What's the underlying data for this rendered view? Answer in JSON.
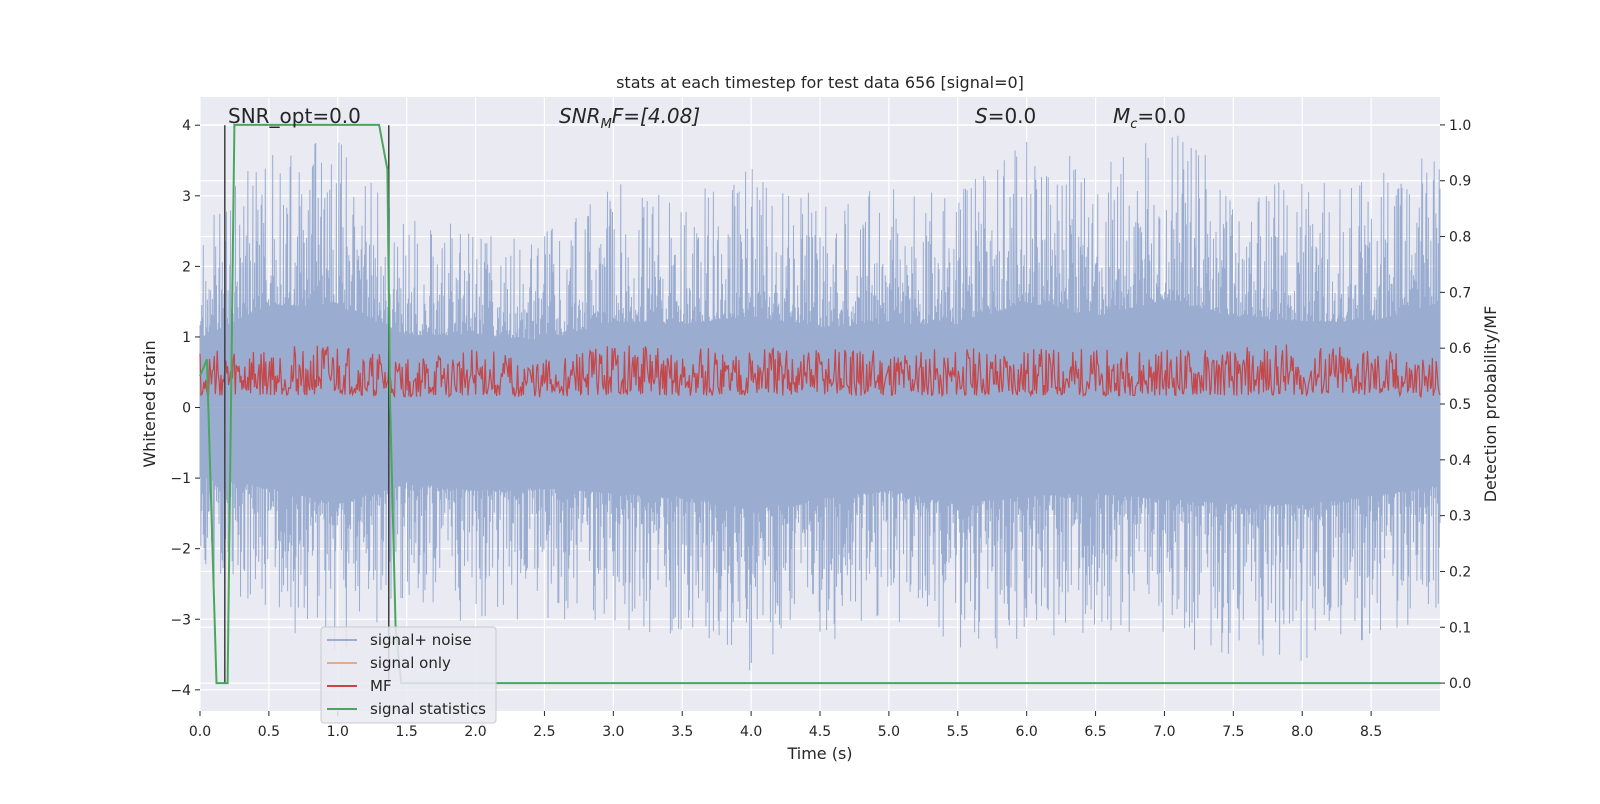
{
  "chart_data": {
    "type": "line",
    "title": "stats at each timestep for test data 656 [signal=0]",
    "xlabel": "Time (s)",
    "ylabel_left": "Whitened strain",
    "ylabel_right": "Detection probability/MF",
    "xlim": [
      0.0,
      9.0
    ],
    "ylim_left": [
      -4.3,
      4.4
    ],
    "ylim_right": [
      -0.05,
      1.05
    ],
    "xticks": [
      0.0,
      0.5,
      1.0,
      1.5,
      2.0,
      2.5,
      3.0,
      3.5,
      4.0,
      4.5,
      5.0,
      5.5,
      6.0,
      6.5,
      7.0,
      7.5,
      8.0,
      8.5
    ],
    "xtick_labels": [
      "0.0",
      "0.5",
      "1.0",
      "1.5",
      "2.0",
      "2.5",
      "3.0",
      "3.5",
      "4.0",
      "4.5",
      "5.0",
      "5.5",
      "6.0",
      "6.5",
      "7.0",
      "7.5",
      "8.0",
      "8.5"
    ],
    "yticks_left": [
      -4,
      -3,
      -2,
      -1,
      0,
      1,
      2,
      3,
      4
    ],
    "ytick_labels_left": [
      "−4",
      "−3",
      "−2",
      "−1",
      "0",
      "1",
      "2",
      "3",
      "4"
    ],
    "yticks_right": [
      0.0,
      0.1,
      0.2,
      0.3,
      0.4,
      0.5,
      0.6,
      0.7,
      0.8,
      0.9,
      1.0
    ],
    "ytick_labels_right": [
      "0.0",
      "0.1",
      "0.2",
      "0.3",
      "0.4",
      "0.5",
      "0.6",
      "0.7",
      "0.8",
      "0.9",
      "1.0"
    ],
    "grid": true,
    "legend_position": "lower-left",
    "annotations": {
      "snr_opt": "SNR_opt=0.0",
      "snr_mf_main": "SNR",
      "snr_mf_sub": "M",
      "snr_mf_rest": "F=[4.08]",
      "s_italic": "S",
      "s_rest": "=0.0",
      "mc_main": "M",
      "mc_sub": "c",
      "mc_rest": "=0.0"
    },
    "series": [
      {
        "name": "signal+ noise",
        "axis": "left",
        "color": "#9aadd1",
        "envelope": {
          "x": [
            0.0,
            0.5,
            1.0,
            1.5,
            2.0,
            2.5,
            3.0,
            3.5,
            4.0,
            4.5,
            5.0,
            5.5,
            6.0,
            6.5,
            7.0,
            7.5,
            8.0,
            8.5,
            9.0
          ],
          "upper": [
            2.6,
            3.8,
            3.8,
            2.7,
            2.7,
            2.5,
            3.2,
            3.1,
            3.4,
            3.0,
            3.1,
            3.1,
            3.9,
            3.4,
            4.0,
            3.4,
            3.2,
            3.2,
            3.9
          ],
          "lower": [
            -2.6,
            -3.0,
            -3.6,
            -2.8,
            -3.1,
            -3.0,
            -3.2,
            -3.3,
            -3.8,
            -3.4,
            -3.1,
            -3.6,
            -3.3,
            -3.2,
            -3.4,
            -3.6,
            -3.6,
            -3.3,
            -2.9
          ]
        }
      },
      {
        "name": "signal only",
        "axis": "left",
        "color": "#e8a98b",
        "x": [
          0.0,
          9.0
        ],
        "y": [
          0.0,
          0.0
        ]
      },
      {
        "name": "MF",
        "axis": "right",
        "color": "#c4474a",
        "envelope": {
          "x": [
            0.0,
            0.5,
            1.0,
            1.5,
            2.0,
            2.5,
            3.0,
            3.5,
            4.0,
            4.5,
            5.0,
            5.5,
            6.0,
            6.5,
            7.0,
            7.5,
            8.0,
            8.5,
            9.0
          ],
          "upper": [
            0.6,
            0.6,
            0.61,
            0.58,
            0.6,
            0.58,
            0.61,
            0.6,
            0.6,
            0.6,
            0.6,
            0.6,
            0.6,
            0.6,
            0.6,
            0.6,
            0.61,
            0.6,
            0.58
          ],
          "lower": [
            0.5,
            0.5,
            0.5,
            0.5,
            0.5,
            0.5,
            0.5,
            0.5,
            0.5,
            0.5,
            0.5,
            0.5,
            0.5,
            0.5,
            0.5,
            0.5,
            0.5,
            0.5,
            0.5
          ]
        }
      },
      {
        "name": "signal statistics",
        "axis": "right",
        "color": "#4aa65c",
        "x": [
          0.0,
          0.05,
          0.12,
          0.2,
          0.25,
          0.5,
          1.0,
          1.3,
          1.36,
          1.38,
          1.42,
          1.46,
          2.0,
          4.0,
          6.0,
          8.0,
          9.0
        ],
        "y": [
          0.55,
          0.58,
          0.0,
          0.0,
          1.0,
          1.0,
          1.0,
          1.0,
          0.92,
          0.5,
          0.1,
          0.0,
          0.0,
          0.0,
          0.0,
          0.0,
          0.0
        ]
      }
    ],
    "vertical_markers_s": [
      0.18,
      1.37
    ]
  }
}
